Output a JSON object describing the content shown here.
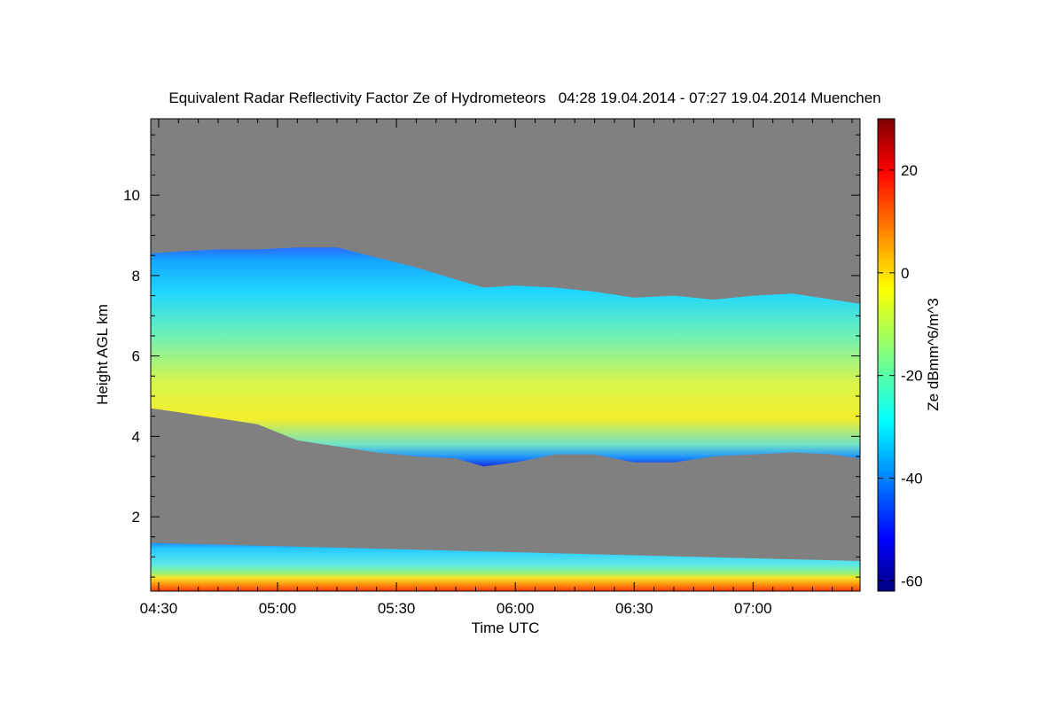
{
  "chart_data": {
    "type": "heatmap",
    "title": "Equivalent Radar Reflectivity Factor Ze of Hydrometeors   04:28 19.04.2014 - 07:27 19.04.2014 Muenchen",
    "xlabel": "Time UTC",
    "ylabel": "Height AGL km",
    "colorbar_label": "Ze dBmm^6/m^3",
    "x_start_label": "04:28",
    "x_end_label": "07:27",
    "ylim": [
      0.15,
      11.9
    ],
    "colorbar_range": [
      -62,
      30
    ],
    "x_tick_labels": [
      "04:30",
      "05:00",
      "05:30",
      "06:00",
      "06:30",
      "07:00"
    ],
    "y_tick_labels": [
      "2",
      "4",
      "6",
      "8",
      "10"
    ],
    "colorbar_tick_labels": [
      "20",
      "0",
      "-20",
      "-40",
      "-60"
    ],
    "background_color": "#808080",
    "colormap": "jet",
    "upper_cloud_layer": {
      "times": [
        "04:28",
        "04:35",
        "04:45",
        "04:55",
        "05:05",
        "05:15",
        "05:25",
        "05:35",
        "05:45",
        "05:52",
        "06:00",
        "06:10",
        "06:20",
        "06:30",
        "06:40",
        "06:50",
        "07:00",
        "07:10",
        "07:20",
        "07:27"
      ],
      "top_km": [
        8.55,
        8.6,
        8.65,
        8.65,
        8.7,
        8.7,
        8.45,
        8.2,
        7.9,
        7.7,
        7.75,
        7.7,
        7.6,
        7.45,
        7.5,
        7.4,
        7.5,
        7.55,
        7.4,
        7.3
      ],
      "base_km": [
        4.7,
        4.6,
        4.45,
        4.3,
        3.9,
        3.75,
        3.6,
        3.5,
        3.45,
        3.25,
        3.35,
        3.55,
        3.55,
        3.35,
        3.35,
        3.5,
        3.55,
        3.6,
        3.55,
        3.45
      ],
      "peak_dbz": -8
    },
    "lower_layer": {
      "top_km": [
        1.35,
        0.9
      ],
      "surface_dbz": 10
    }
  }
}
